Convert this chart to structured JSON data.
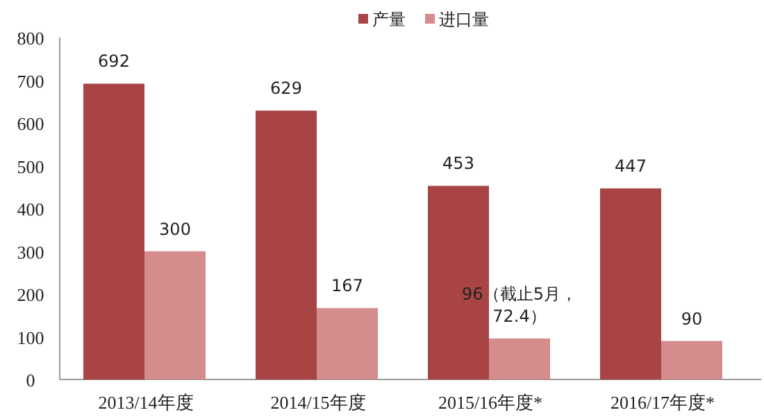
{
  "chart_data": {
    "type": "bar",
    "categories": [
      "2013/14年度",
      "2014/15年度",
      "2015/16年度*",
      "2016/17年度*"
    ],
    "series": [
      {
        "name": "产量",
        "color": "#a84444",
        "values": [
          692,
          629,
          453,
          447
        ],
        "value_labels": [
          "692",
          "629",
          "453",
          "447"
        ]
      },
      {
        "name": "进口量",
        "color": "#d48c8c",
        "values": [
          300,
          167,
          96,
          90
        ],
        "value_labels": [
          "300",
          "167",
          "96（截止5月，72.4）",
          "90"
        ]
      }
    ],
    "ylim": [
      0,
      800
    ],
    "yticks": [
      0,
      100,
      200,
      300,
      400,
      500,
      600,
      700,
      800
    ],
    "grid": false,
    "legend": "top"
  }
}
